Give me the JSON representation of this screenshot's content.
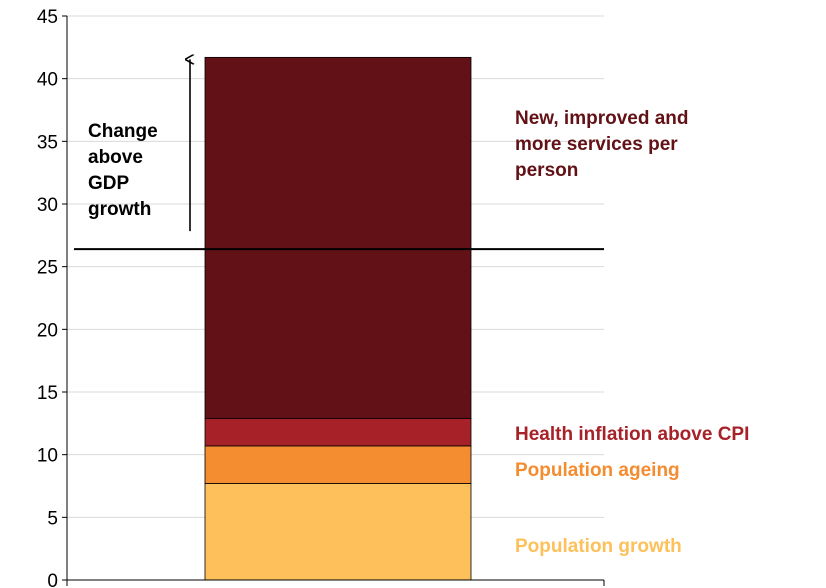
{
  "chart_data": {
    "type": "bar",
    "stacked": true,
    "categories": [
      ""
    ],
    "ylim": [
      0,
      45
    ],
    "yticks": [
      0,
      5,
      10,
      15,
      20,
      25,
      30,
      35,
      40,
      45
    ],
    "grid": true,
    "series": [
      {
        "name": "Population growth",
        "values": [
          7.7
        ],
        "color": "#FDC05A"
      },
      {
        "name": "Population ageing",
        "values": [
          3.0
        ],
        "color": "#F48C30"
      },
      {
        "name": "Health inflation above CPI",
        "values": [
          2.2
        ],
        "color": "#A62228"
      },
      {
        "name": "New, improved and more services per person",
        "values": [
          28.8
        ],
        "color": "#621216"
      }
    ],
    "reference_line": {
      "value": 26.4
    },
    "annotation": {
      "lines": [
        "Change",
        "above",
        "GDP",
        "growth"
      ],
      "arrow_from": 26.4,
      "arrow_to": 41.7
    },
    "segment_labels": [
      {
        "lines": [
          "New, improved and",
          "more services per",
          "person"
        ],
        "color": "#621216"
      },
      {
        "lines": [
          "Health inflation above CPI"
        ],
        "color": "#A62228"
      },
      {
        "lines": [
          "Population ageing"
        ],
        "color": "#F48C30"
      },
      {
        "lines": [
          "Population growth"
        ],
        "color": "#FDC05A"
      }
    ]
  }
}
